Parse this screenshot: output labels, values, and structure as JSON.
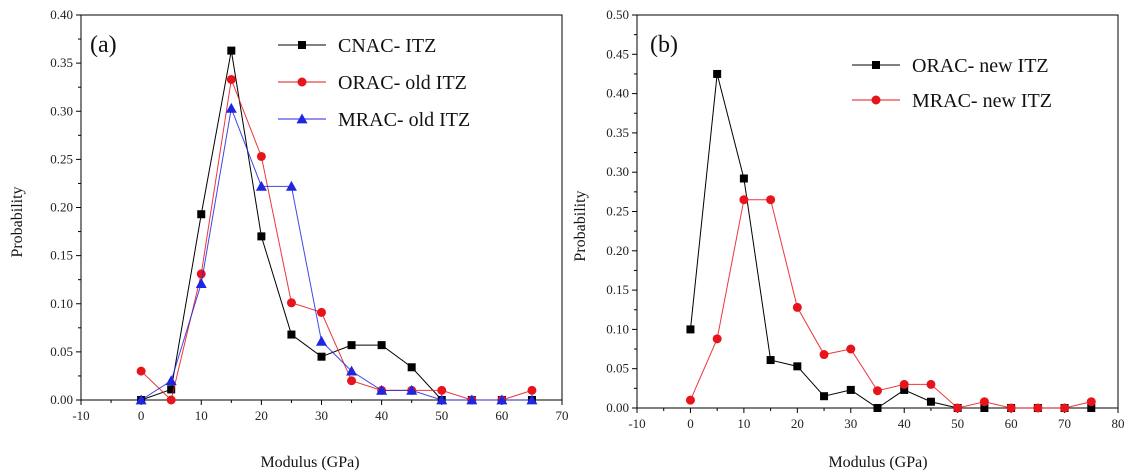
{
  "chart_data": [
    {
      "type": "line",
      "panel_label": "(a)",
      "xlabel": "Modulus (GPa)",
      "ylabel": "Probability",
      "xlim": [
        -10,
        70
      ],
      "ylim": [
        0,
        0.4
      ],
      "x_ticks": [
        -10,
        0,
        10,
        20,
        30,
        40,
        50,
        60,
        70
      ],
      "y_ticks": [
        0.0,
        0.05,
        0.1,
        0.15,
        0.2,
        0.25,
        0.3,
        0.35,
        0.4
      ],
      "legend_position": "top-right",
      "x": [
        0,
        5,
        10,
        15,
        20,
        25,
        30,
        35,
        40,
        45,
        50,
        55,
        60,
        65
      ],
      "series": [
        {
          "name": "CNAC- ITZ",
          "color": "#000000",
          "marker": "square",
          "values": [
            0.0,
            0.011,
            0.193,
            0.363,
            0.17,
            0.068,
            0.045,
            0.057,
            0.057,
            0.034,
            0.0,
            0.0,
            0.0,
            0.0
          ]
        },
        {
          "name": "ORAC- old ITZ",
          "color": "#e8141b",
          "marker": "circle",
          "values": [
            0.03,
            0.0,
            0.131,
            0.333,
            0.253,
            0.101,
            0.091,
            0.02,
            0.01,
            0.01,
            0.01,
            0.0,
            0.0,
            0.01
          ]
        },
        {
          "name": "MRAC- old ITZ",
          "color": "#1f26e0",
          "marker": "triangle",
          "values": [
            0.0,
            0.02,
            0.121,
            0.303,
            0.222,
            0.222,
            0.061,
            0.03,
            0.01,
            0.01,
            0.0,
            0.0,
            0.0,
            0.0
          ]
        }
      ]
    },
    {
      "type": "line",
      "panel_label": "(b)",
      "xlabel": "Modulus (GPa)",
      "ylabel": "Probability",
      "xlim": [
        -10,
        80
      ],
      "ylim": [
        0,
        0.5
      ],
      "x_ticks": [
        -10,
        0,
        10,
        20,
        30,
        40,
        50,
        60,
        70,
        80
      ],
      "y_ticks": [
        0.0,
        0.05,
        0.1,
        0.15,
        0.2,
        0.25,
        0.3,
        0.35,
        0.4,
        0.45,
        0.5
      ],
      "legend_position": "top-right",
      "x": [
        0,
        5,
        10,
        15,
        20,
        25,
        30,
        35,
        40,
        45,
        50,
        55,
        60,
        65,
        70,
        75
      ],
      "series": [
        {
          "name": "ORAC- new ITZ",
          "color": "#000000",
          "marker": "square",
          "values": [
            0.1,
            0.425,
            0.292,
            0.061,
            0.053,
            0.015,
            0.023,
            0.0,
            0.023,
            0.008,
            0.0,
            0.0,
            0.0,
            0.0,
            0.0,
            0.0
          ]
        },
        {
          "name": "MRAC- new ITZ",
          "color": "#e8141b",
          "marker": "circle",
          "values": [
            0.01,
            0.088,
            0.265,
            0.265,
            0.128,
            0.068,
            0.075,
            0.022,
            0.03,
            0.03,
            0.0,
            0.008,
            0.0,
            0.0,
            0.0,
            0.008
          ]
        }
      ]
    }
  ]
}
